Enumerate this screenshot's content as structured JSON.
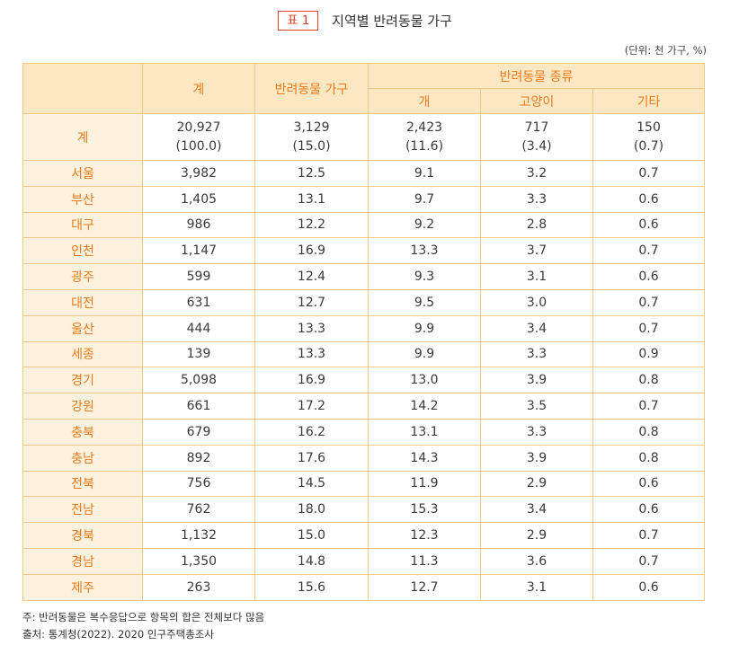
{
  "title": {
    "badge": "표 1",
    "text": "지역별 반려동물 가구"
  },
  "unit": "(단위: 천 가구, %)",
  "headers": {
    "total": "계",
    "pet_households": "반려동물 가구",
    "pet_types": "반려동물 종류",
    "dog": "개",
    "cat": "고양이",
    "other": "기타"
  },
  "total_row": {
    "label": "계",
    "total": "20,927",
    "total_pct": "(100.0)",
    "pet": "3,129",
    "pet_pct": "(15.0)",
    "dog": "2,423",
    "dog_pct": "(11.6)",
    "cat": "717",
    "cat_pct": "(3.4)",
    "other": "150",
    "other_pct": "(0.7)"
  },
  "rows": [
    {
      "region": "서울",
      "total": "3,982",
      "pet": "12.5",
      "dog": "9.1",
      "cat": "3.2",
      "other": "0.7"
    },
    {
      "region": "부산",
      "total": "1,405",
      "pet": "13.1",
      "dog": "9.7",
      "cat": "3.3",
      "other": "0.6"
    },
    {
      "region": "대구",
      "total": "986",
      "pet": "12.2",
      "dog": "9.2",
      "cat": "2.8",
      "other": "0.6"
    },
    {
      "region": "인천",
      "total": "1,147",
      "pet": "16.9",
      "dog": "13.3",
      "cat": "3.7",
      "other": "0.7"
    },
    {
      "region": "광주",
      "total": "599",
      "pet": "12.4",
      "dog": "9.3",
      "cat": "3.1",
      "other": "0.6"
    },
    {
      "region": "대전",
      "total": "631",
      "pet": "12.7",
      "dog": "9.5",
      "cat": "3.0",
      "other": "0.7"
    },
    {
      "region": "울산",
      "total": "444",
      "pet": "13.3",
      "dog": "9.9",
      "cat": "3.4",
      "other": "0.7"
    },
    {
      "region": "세종",
      "total": "139",
      "pet": "13.3",
      "dog": "9.9",
      "cat": "3.3",
      "other": "0.9"
    },
    {
      "region": "경기",
      "total": "5,098",
      "pet": "16.9",
      "dog": "13.0",
      "cat": "3.9",
      "other": "0.8"
    },
    {
      "region": "강원",
      "total": "661",
      "pet": "17.2",
      "dog": "14.2",
      "cat": "3.5",
      "other": "0.7"
    },
    {
      "region": "충북",
      "total": "679",
      "pet": "16.2",
      "dog": "13.1",
      "cat": "3.3",
      "other": "0.8"
    },
    {
      "region": "충남",
      "total": "892",
      "pet": "17.6",
      "dog": "14.3",
      "cat": "3.9",
      "other": "0.8"
    },
    {
      "region": "전북",
      "total": "756",
      "pet": "14.5",
      "dog": "11.9",
      "cat": "2.9",
      "other": "0.6"
    },
    {
      "region": "전남",
      "total": "762",
      "pet": "18.0",
      "dog": "15.3",
      "cat": "3.4",
      "other": "0.6"
    },
    {
      "region": "경북",
      "total": "1,132",
      "pet": "15.0",
      "dog": "12.3",
      "cat": "2.9",
      "other": "0.7"
    },
    {
      "region": "경남",
      "total": "1,350",
      "pet": "14.8",
      "dog": "11.3",
      "cat": "3.6",
      "other": "0.7"
    },
    {
      "region": "제주",
      "total": "263",
      "pet": "15.6",
      "dog": "12.7",
      "cat": "3.1",
      "other": "0.6"
    }
  ],
  "notes": {
    "note": "주: 반려동물은 복수응답으로 항목의 합은 전체보다 많음",
    "source": "출처: 통계청(2022). 2020 인구주택총조사"
  }
}
